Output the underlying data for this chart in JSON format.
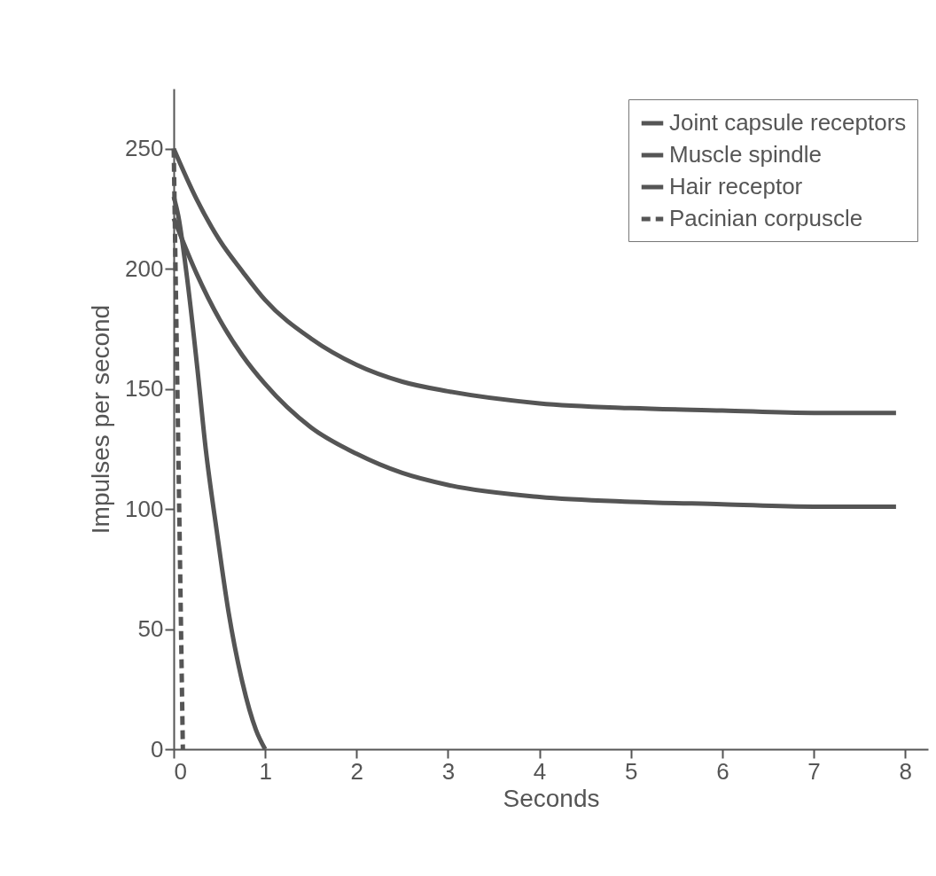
{
  "chart_data": {
    "type": "line",
    "xlabel": "Seconds",
    "ylabel": "Impulses per second",
    "xlim": [
      0,
      8.25
    ],
    "ylim": [
      0,
      275
    ],
    "xticks": [
      0,
      1,
      2,
      3,
      4,
      5,
      6,
      7,
      8
    ],
    "yticks": [
      0,
      50,
      100,
      150,
      200,
      250
    ],
    "grid": false,
    "legend": "top right",
    "marker": "none",
    "series": [
      {
        "name": "Joint capsule receptors",
        "color": "#555555",
        "line_style": "solid",
        "x": [
          0,
          0.25,
          0.5,
          0.75,
          1,
          1.5,
          2,
          2.5,
          3,
          4,
          5,
          6,
          7,
          7.9
        ],
        "values": [
          250,
          229,
          212,
          199,
          187,
          171,
          160,
          153,
          149,
          144,
          142,
          141,
          140,
          140
        ]
      },
      {
        "name": "Muscle spindle",
        "color": "#555555",
        "line_style": "solid",
        "x": [
          0,
          0.25,
          0.5,
          0.75,
          1,
          1.5,
          2,
          2.5,
          3,
          4,
          5,
          6,
          7,
          7.9
        ],
        "values": [
          221,
          198,
          179,
          164,
          152,
          134,
          123,
          115,
          110,
          105,
          103,
          102,
          101,
          101
        ]
      },
      {
        "name": "Hair receptor",
        "color": "#555555",
        "line_style": "solid",
        "x": [
          0,
          0.05,
          0.15,
          0.26,
          0.35,
          0.47,
          0.6,
          0.75,
          0.9,
          1
        ],
        "values": [
          230,
          222,
          195,
          158,
          125,
          91,
          57,
          28,
          8,
          0
        ]
      },
      {
        "name": "Pacinian corpuscle",
        "color": "#555555",
        "line_style": "dashed",
        "x": [
          0,
          0.1
        ],
        "values": [
          250,
          0
        ]
      }
    ]
  }
}
